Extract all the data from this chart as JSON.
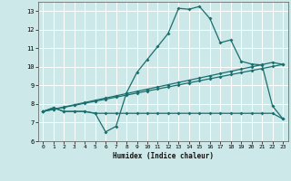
{
  "title": "",
  "xlabel": "Humidex (Indice chaleur)",
  "xlim": [
    -0.5,
    23.5
  ],
  "ylim": [
    6.0,
    13.5
  ],
  "yticks": [
    6,
    7,
    8,
    9,
    10,
    11,
    12,
    13
  ],
  "xticks": [
    0,
    1,
    2,
    3,
    4,
    5,
    6,
    7,
    8,
    9,
    10,
    11,
    12,
    13,
    14,
    15,
    16,
    17,
    18,
    19,
    20,
    21,
    22,
    23
  ],
  "bg_color": "#cce8e8",
  "line_color": "#1a6e6e",
  "grid_color": "#ffffff",
  "line1_x": [
    0,
    1,
    2,
    3,
    4,
    5,
    6,
    7,
    8,
    9,
    10,
    11,
    12,
    13,
    14,
    15,
    16,
    17,
    18,
    19,
    20,
    21,
    22,
    23
  ],
  "line1_y": [
    7.6,
    7.8,
    7.6,
    7.6,
    7.6,
    7.5,
    6.5,
    6.8,
    8.6,
    9.7,
    10.4,
    11.1,
    11.8,
    13.15,
    13.1,
    13.25,
    12.6,
    11.3,
    11.45,
    10.3,
    10.15,
    10.1,
    7.9,
    7.2
  ],
  "line2_x": [
    0,
    1,
    2,
    3,
    4,
    5,
    6,
    7,
    8,
    9,
    10,
    11,
    12,
    13,
    14,
    15,
    16,
    17,
    18,
    19,
    20,
    21,
    22,
    23
  ],
  "line2_y": [
    7.6,
    7.8,
    7.6,
    7.6,
    7.6,
    7.5,
    7.5,
    7.5,
    7.5,
    7.5,
    7.5,
    7.5,
    7.5,
    7.5,
    7.5,
    7.5,
    7.5,
    7.5,
    7.5,
    7.5,
    7.5,
    7.5,
    7.5,
    7.2
  ],
  "line3_x": [
    0,
    1,
    2,
    3,
    4,
    5,
    6,
    7,
    8,
    9,
    10,
    11,
    12,
    13,
    14,
    15,
    16,
    17,
    18,
    19,
    20,
    21,
    22,
    23
  ],
  "line3_y": [
    7.6,
    7.71,
    7.82,
    7.93,
    8.04,
    8.15,
    8.26,
    8.37,
    8.48,
    8.59,
    8.7,
    8.81,
    8.92,
    9.03,
    9.14,
    9.25,
    9.36,
    9.47,
    9.58,
    9.69,
    9.8,
    9.91,
    10.02,
    10.13
  ],
  "line4_x": [
    0,
    1,
    2,
    3,
    4,
    5,
    6,
    7,
    8,
    9,
    10,
    11,
    12,
    13,
    14,
    15,
    16,
    17,
    18,
    19,
    20,
    21,
    22,
    23
  ],
  "line4_y": [
    7.6,
    7.72,
    7.84,
    7.96,
    8.08,
    8.2,
    8.32,
    8.44,
    8.56,
    8.68,
    8.8,
    8.92,
    9.04,
    9.16,
    9.28,
    9.4,
    9.52,
    9.64,
    9.76,
    9.88,
    10.0,
    10.12,
    10.24,
    10.13
  ]
}
